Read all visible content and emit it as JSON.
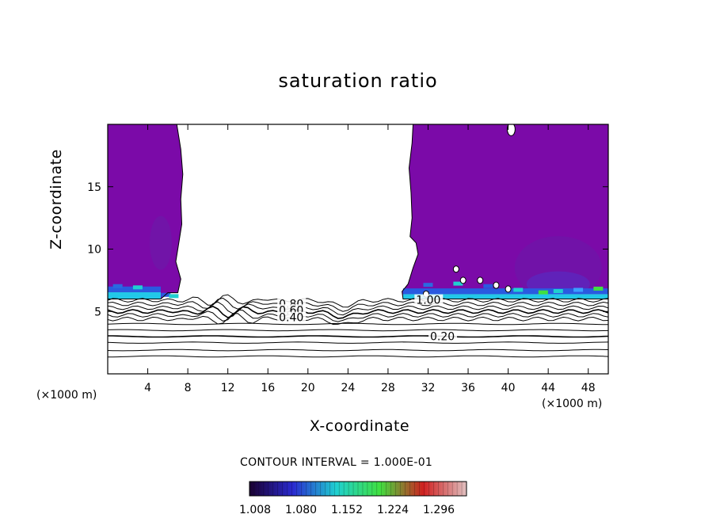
{
  "chart_data": {
    "type": "heatmap",
    "title": "saturation ratio",
    "xlabel": "X-coordinate",
    "ylabel": "Z-coordinate",
    "x_unit_label": "(×1000 m)",
    "x_ticks": [
      4,
      8,
      12,
      16,
      20,
      24,
      28,
      32,
      36,
      40,
      44,
      48
    ],
    "y_ticks": [
      5,
      10,
      15
    ],
    "xlim": [
      0,
      50
    ],
    "ylim": [
      0,
      20
    ],
    "contour_interval_text": "CONTOUR INTERVAL = 1.000E-01",
    "contour_labels": [
      {
        "text": "0.80",
        "x": 17.1,
        "z": 5.5
      },
      {
        "text": "0.60",
        "x": 17.1,
        "z": 5.0
      },
      {
        "text": "0.40",
        "x": 17.1,
        "z": 4.4
      },
      {
        "text": "1.00",
        "x": 30.8,
        "z": 5.8
      },
      {
        "text": "0.20",
        "x": 32.2,
        "z": 2.9
      }
    ],
    "shaded_regions": [
      {
        "name": "supersaturated-left",
        "x_range": [
          0,
          9
        ],
        "z_range": [
          6.0,
          20
        ]
      },
      {
        "name": "supersaturated-right",
        "x_range": [
          29.5,
          50
        ],
        "z_range": [
          6.0,
          20
        ]
      }
    ],
    "colorbar": {
      "ticks": [
        "1.008",
        "1.080",
        "1.152",
        "1.224",
        "1.296"
      ],
      "colors": [
        "#1a0030",
        "#2a2ad0",
        "#1fd0d0",
        "#40e040",
        "#d02020",
        "#e0c0c0"
      ]
    },
    "colors": {
      "fill": "#7b0aa8",
      "fill_dark": "#6a1aa8",
      "base_cyan": "#22c8e8",
      "base_blue": "#2a5ae0",
      "line": "#000000"
    }
  }
}
